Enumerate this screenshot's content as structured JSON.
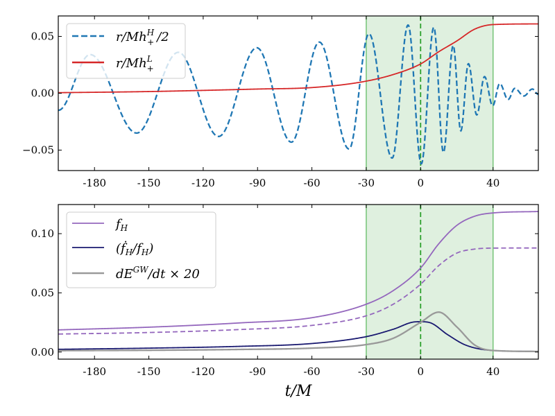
{
  "chart_data": [
    {
      "type": "line",
      "panel": "top",
      "xlim": [
        -200,
        65
      ],
      "ylim": [
        -0.068,
        0.068
      ],
      "xticks": [
        -180,
        -150,
        -120,
        -90,
        -60,
        -30,
        0,
        40
      ],
      "xtick_labels": [
        "-180",
        "-150",
        "-120",
        "-90",
        "-60",
        "-30",
        "0",
        "40"
      ],
      "yticks": [
        -0.05,
        0.0,
        0.05
      ],
      "ytick_labels": [
        "−0.05",
        "0.00",
        "0.05"
      ],
      "shaded_region": [
        -30,
        40
      ],
      "vertical_dashed_line": 0,
      "legend_position": "upper-left",
      "grid": false,
      "series": [
        {
          "name": "r/Mh_+^H/2",
          "legend": {
            "base": "r/Mh",
            "sup": "H",
            "sub": "+",
            "tail": "/2"
          },
          "color": "#1f77b4",
          "style": "dashed",
          "interp": "extrema",
          "x": [
            -200,
            -182.4,
            -156.7,
            -133.7,
            -111.5,
            -90.4,
            -71.3,
            -55.9,
            -39.5,
            -28.5,
            -15.7,
            -6.9,
            0.4,
            7.3,
            12.6,
            18.0,
            22.2,
            26.4,
            31.0,
            35.3,
            39.8,
            43.7,
            48.3,
            52.0,
            57.0,
            61.7,
            65
          ],
          "y": [
            -0.015,
            0.034,
            -0.035,
            0.036,
            -0.038,
            0.04,
            -0.043,
            0.045,
            -0.049,
            0.0523,
            -0.057,
            0.06,
            -0.062,
            0.058,
            -0.052,
            0.042,
            -0.033,
            0.026,
            -0.019,
            0.0146,
            -0.011,
            0.0085,
            -0.0055,
            0.0043,
            -0.0024,
            0.0037,
            -0.001
          ]
        },
        {
          "name": "r/Mh_+^L",
          "legend": {
            "base": "r/Mh",
            "sup": "L",
            "sub": "+",
            "tail": ""
          },
          "color": "#d62728",
          "style": "solid",
          "interp": "smooth",
          "x": [
            -200,
            -150,
            -90,
            -60,
            -33,
            -15,
            0,
            10,
            20,
            30,
            40,
            65
          ],
          "y": [
            0.0005,
            0.0015,
            0.0037,
            0.005,
            0.0098,
            0.0165,
            0.0258,
            0.0365,
            0.046,
            0.0565,
            0.0604,
            0.061
          ]
        }
      ]
    },
    {
      "type": "line",
      "panel": "bottom",
      "xlim": [
        -200,
        65
      ],
      "ylim": [
        -0.006,
        0.1246
      ],
      "xticks": [
        -180,
        -150,
        -120,
        -90,
        -60,
        -30,
        0,
        40
      ],
      "xtick_labels": [
        "-180",
        "-150",
        "-120",
        "-90",
        "-60",
        "-30",
        "0",
        "40"
      ],
      "yticks": [
        0.0,
        0.05,
        0.1
      ],
      "ytick_labels": [
        "0.00",
        "0.05",
        "0.10"
      ],
      "xlabel": "t/M",
      "shaded_region": [
        -30,
        40
      ],
      "vertical_dashed_line": 0,
      "legend_position": "upper-left",
      "grid": false,
      "series": [
        {
          "name": "f_H",
          "legend": {
            "pre": "",
            "base": "f",
            "sub": "H",
            "tail": ""
          },
          "color": "#9467bd",
          "style": "solid",
          "interp": "smooth",
          "x": [
            -200,
            -150,
            -100,
            -60,
            -30,
            -15,
            0,
            10,
            20,
            30,
            40,
            65
          ],
          "y": [
            0.0187,
            0.021,
            0.0246,
            0.029,
            0.0404,
            0.052,
            0.071,
            0.0914,
            0.107,
            0.1148,
            0.1175,
            0.1187
          ]
        },
        {
          "color": "#9467bd",
          "style": "dashed",
          "interp": "smooth",
          "x": [
            -200,
            -150,
            -100,
            -60,
            -30,
            -15,
            0,
            10,
            20,
            30,
            40,
            65
          ],
          "y": [
            0.0152,
            0.0165,
            0.019,
            0.0225,
            0.0306,
            0.0405,
            0.0573,
            0.073,
            0.0836,
            0.087,
            0.0878,
            0.0879
          ]
        },
        {
          "name": "(ḟ_H/f_H)",
          "legend": {
            "pre": "(",
            "base": "ḟ",
            "sub": "H",
            "tail": "/f",
            "sub2": "H",
            "end": ")"
          },
          "color": "#191970",
          "style": "solid",
          "interp": "smooth",
          "x": [
            -200,
            -150,
            -100,
            -60,
            -30,
            -15,
            -3,
            0,
            5,
            15,
            25,
            40,
            65
          ],
          "y": [
            0.0023,
            0.0033,
            0.0048,
            0.0072,
            0.013,
            0.0193,
            0.0255,
            0.0256,
            0.0249,
            0.0146,
            0.0058,
            0.0013,
            0.0005
          ]
        },
        {
          "name": "dE^GW/dt × 20",
          "legend": {
            "base": "dE",
            "sup": "GW",
            "tail": "/dt × 20"
          },
          "color": "#999999",
          "style": "solid",
          "interp": "smooth",
          "x": [
            -200,
            -150,
            -100,
            -60,
            -30,
            -15,
            0,
            10,
            20,
            30,
            40,
            65
          ],
          "y": [
            0.0012,
            0.0015,
            0.0022,
            0.0033,
            0.0063,
            0.0117,
            0.0251,
            0.0337,
            0.0212,
            0.0058,
            0.0013,
            0.0005
          ]
        }
      ]
    }
  ],
  "colors": {
    "shade": "#dff0df",
    "shade_edge": "#74c476",
    "center_line": "#2ca02c"
  }
}
